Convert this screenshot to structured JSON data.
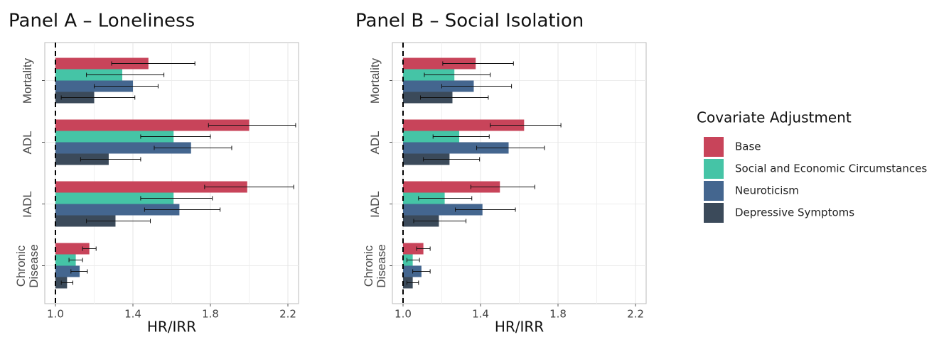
{
  "chart_data": [
    {
      "type": "bar",
      "orientation": "horizontal",
      "title": "Panel A – Loneliness",
      "xlabel": "HR/IRR",
      "legend_title": "Covariate Adjustment",
      "categories": [
        "Mortality",
        "ADL",
        "IADL",
        "Chronic Disease"
      ],
      "series": [
        {
          "name": "Base",
          "color": "#c8445a",
          "values": [
            1.48,
            2.0,
            1.99,
            1.175
          ],
          "lower": [
            1.29,
            1.79,
            1.77,
            1.14
          ],
          "upper": [
            1.72,
            2.24,
            2.23,
            1.21
          ]
        },
        {
          "name": "Social and Economic Circumstances",
          "color": "#45c4a6",
          "values": [
            1.345,
            1.61,
            1.61,
            1.105
          ],
          "lower": [
            1.16,
            1.44,
            1.44,
            1.07
          ],
          "upper": [
            1.56,
            1.8,
            1.81,
            1.14
          ]
        },
        {
          "name": "Neuroticism",
          "color": "#44668f",
          "values": [
            1.4,
            1.7,
            1.64,
            1.125
          ],
          "lower": [
            1.2,
            1.51,
            1.46,
            1.08
          ],
          "upper": [
            1.53,
            1.91,
            1.85,
            1.165
          ]
        },
        {
          "name": "Depressive Symptoms",
          "color": "#3b4a5a",
          "values": [
            1.2,
            1.275,
            1.31,
            1.06
          ],
          "lower": [
            1.03,
            1.13,
            1.16,
            1.03
          ],
          "upper": [
            1.41,
            1.44,
            1.49,
            1.09
          ]
        }
      ],
      "refline": 1.0,
      "xlim": [
        0.945,
        2.255
      ],
      "xticks": [
        {
          "value": 1.0,
          "label": "1.0"
        },
        1.4,
        1.8,
        2.2
      ],
      "grid": true
    },
    {
      "type": "bar",
      "orientation": "horizontal",
      "title": "Panel B – Social Isolation",
      "xlabel": "HR/IRR",
      "categories": [
        "Mortality",
        "ADL",
        "IADL",
        "Chronic Disease"
      ],
      "series": [
        {
          "name": "Base",
          "color": "#c8445a",
          "values": [
            1.375,
            1.625,
            1.5,
            1.105
          ],
          "lower": [
            1.205,
            1.45,
            1.35,
            1.07
          ],
          "upper": [
            1.57,
            1.815,
            1.68,
            1.14
          ]
        },
        {
          "name": "Social and Economic Circumstances",
          "color": "#45c4a6",
          "values": [
            1.265,
            1.29,
            1.215,
            1.05
          ],
          "lower": [
            1.11,
            1.155,
            1.08,
            1.02
          ],
          "upper": [
            1.45,
            1.445,
            1.355,
            1.085
          ]
        },
        {
          "name": "Neuroticism",
          "color": "#44668f",
          "values": [
            1.365,
            1.545,
            1.41,
            1.095
          ],
          "lower": [
            1.2,
            1.38,
            1.27,
            1.05
          ],
          "upper": [
            1.56,
            1.73,
            1.58,
            1.14
          ]
        },
        {
          "name": "Depressive Symptoms",
          "color": "#3b4a5a",
          "values": [
            1.255,
            1.24,
            1.185,
            1.05
          ],
          "lower": [
            1.09,
            1.105,
            1.055,
            1.02
          ],
          "upper": [
            1.44,
            1.395,
            1.325,
            1.08
          ]
        }
      ],
      "refline": 1.0,
      "xlim": [
        0.945,
        2.255
      ],
      "xticks": [
        {
          "value": 1.0,
          "label": "1.0"
        },
        1.4,
        1.8,
        2.2
      ],
      "grid": true
    }
  ]
}
